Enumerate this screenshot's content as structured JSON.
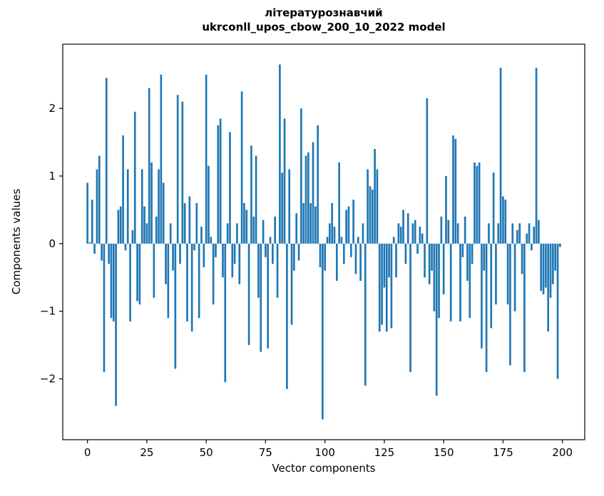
{
  "chart_data": {
    "type": "bar",
    "title": "літературознавчий",
    "subtitle": "ukrconll_upos_cbow_200_10_2022 model",
    "xlabel": "Vector components",
    "ylabel": "Components values",
    "bar_color": "#1f77b4",
    "axis_color": "#000000",
    "xlim": [
      -10.4,
      209.4
    ],
    "ylim": [
      -2.9,
      2.95
    ],
    "xticks": [
      0,
      25,
      50,
      75,
      100,
      125,
      150,
      175,
      200
    ],
    "yticks": [
      -2,
      -1,
      0,
      1,
      2
    ],
    "x_start": 0,
    "values": [
      0.9,
      0.02,
      0.65,
      -0.15,
      1.1,
      1.3,
      -0.25,
      -1.9,
      2.45,
      -0.3,
      -1.1,
      -1.15,
      -2.4,
      0.5,
      0.55,
      1.6,
      -0.1,
      1.1,
      -1.15,
      0.2,
      1.95,
      -0.85,
      -0.9,
      1.1,
      0.55,
      0.3,
      2.3,
      1.2,
      -0.8,
      0.4,
      1.1,
      2.5,
      0.9,
      -0.6,
      -1.1,
      0.3,
      -0.4,
      -1.85,
      2.2,
      -0.3,
      2.1,
      0.6,
      -1.15,
      0.7,
      -1.3,
      -0.1,
      0.6,
      -1.1,
      0.25,
      -0.35,
      2.5,
      1.15,
      0.1,
      -0.9,
      -0.2,
      1.75,
      1.85,
      -0.5,
      -2.05,
      0.3,
      1.65,
      -0.5,
      -0.3,
      0.3,
      -0.6,
      2.25,
      0.6,
      0.5,
      -1.5,
      1.45,
      0.4,
      1.3,
      -0.8,
      -1.6,
      0.35,
      -0.2,
      -1.55,
      0.1,
      -0.3,
      0.4,
      -0.8,
      2.65,
      1.05,
      1.85,
      -2.15,
      1.1,
      -1.2,
      -0.4,
      0.45,
      -0.25,
      2.0,
      0.6,
      1.3,
      1.35,
      0.6,
      1.5,
      0.55,
      1.75,
      -0.35,
      -2.6,
      -0.4,
      0.1,
      0.3,
      0.6,
      0.25,
      -0.55,
      1.2,
      0.1,
      -0.3,
      0.5,
      0.55,
      -0.2,
      0.65,
      -0.45,
      0.1,
      -0.55,
      0.3,
      -2.1,
      1.1,
      0.85,
      0.8,
      1.4,
      1.1,
      -1.3,
      -1.2,
      -0.65,
      -1.3,
      -0.5,
      -1.25,
      0.1,
      -0.5,
      0.3,
      0.25,
      0.5,
      -0.3,
      0.45,
      -1.9,
      0.3,
      0.35,
      -0.15,
      0.25,
      0.15,
      -0.5,
      2.15,
      -0.6,
      -0.4,
      -1.0,
      -2.25,
      -1.1,
      0.4,
      -0.75,
      1.0,
      0.35,
      -1.15,
      1.6,
      1.55,
      0.3,
      -1.15,
      -0.2,
      0.4,
      -0.55,
      -1.1,
      -0.3,
      1.2,
      1.15,
      1.2,
      -1.55,
      -0.4,
      -1.9,
      0.3,
      -1.25,
      1.05,
      -0.9,
      0.3,
      2.6,
      0.7,
      0.65,
      -0.9,
      -1.8,
      0.3,
      -1.0,
      0.2,
      0.3,
      -0.45,
      -1.9,
      0.15,
      0.3,
      -0.1,
      0.25,
      2.6,
      0.35,
      -0.7,
      -0.75,
      -0.65,
      -1.3,
      -0.8,
      -0.6,
      -0.4,
      -2.0,
      -0.05
    ]
  }
}
